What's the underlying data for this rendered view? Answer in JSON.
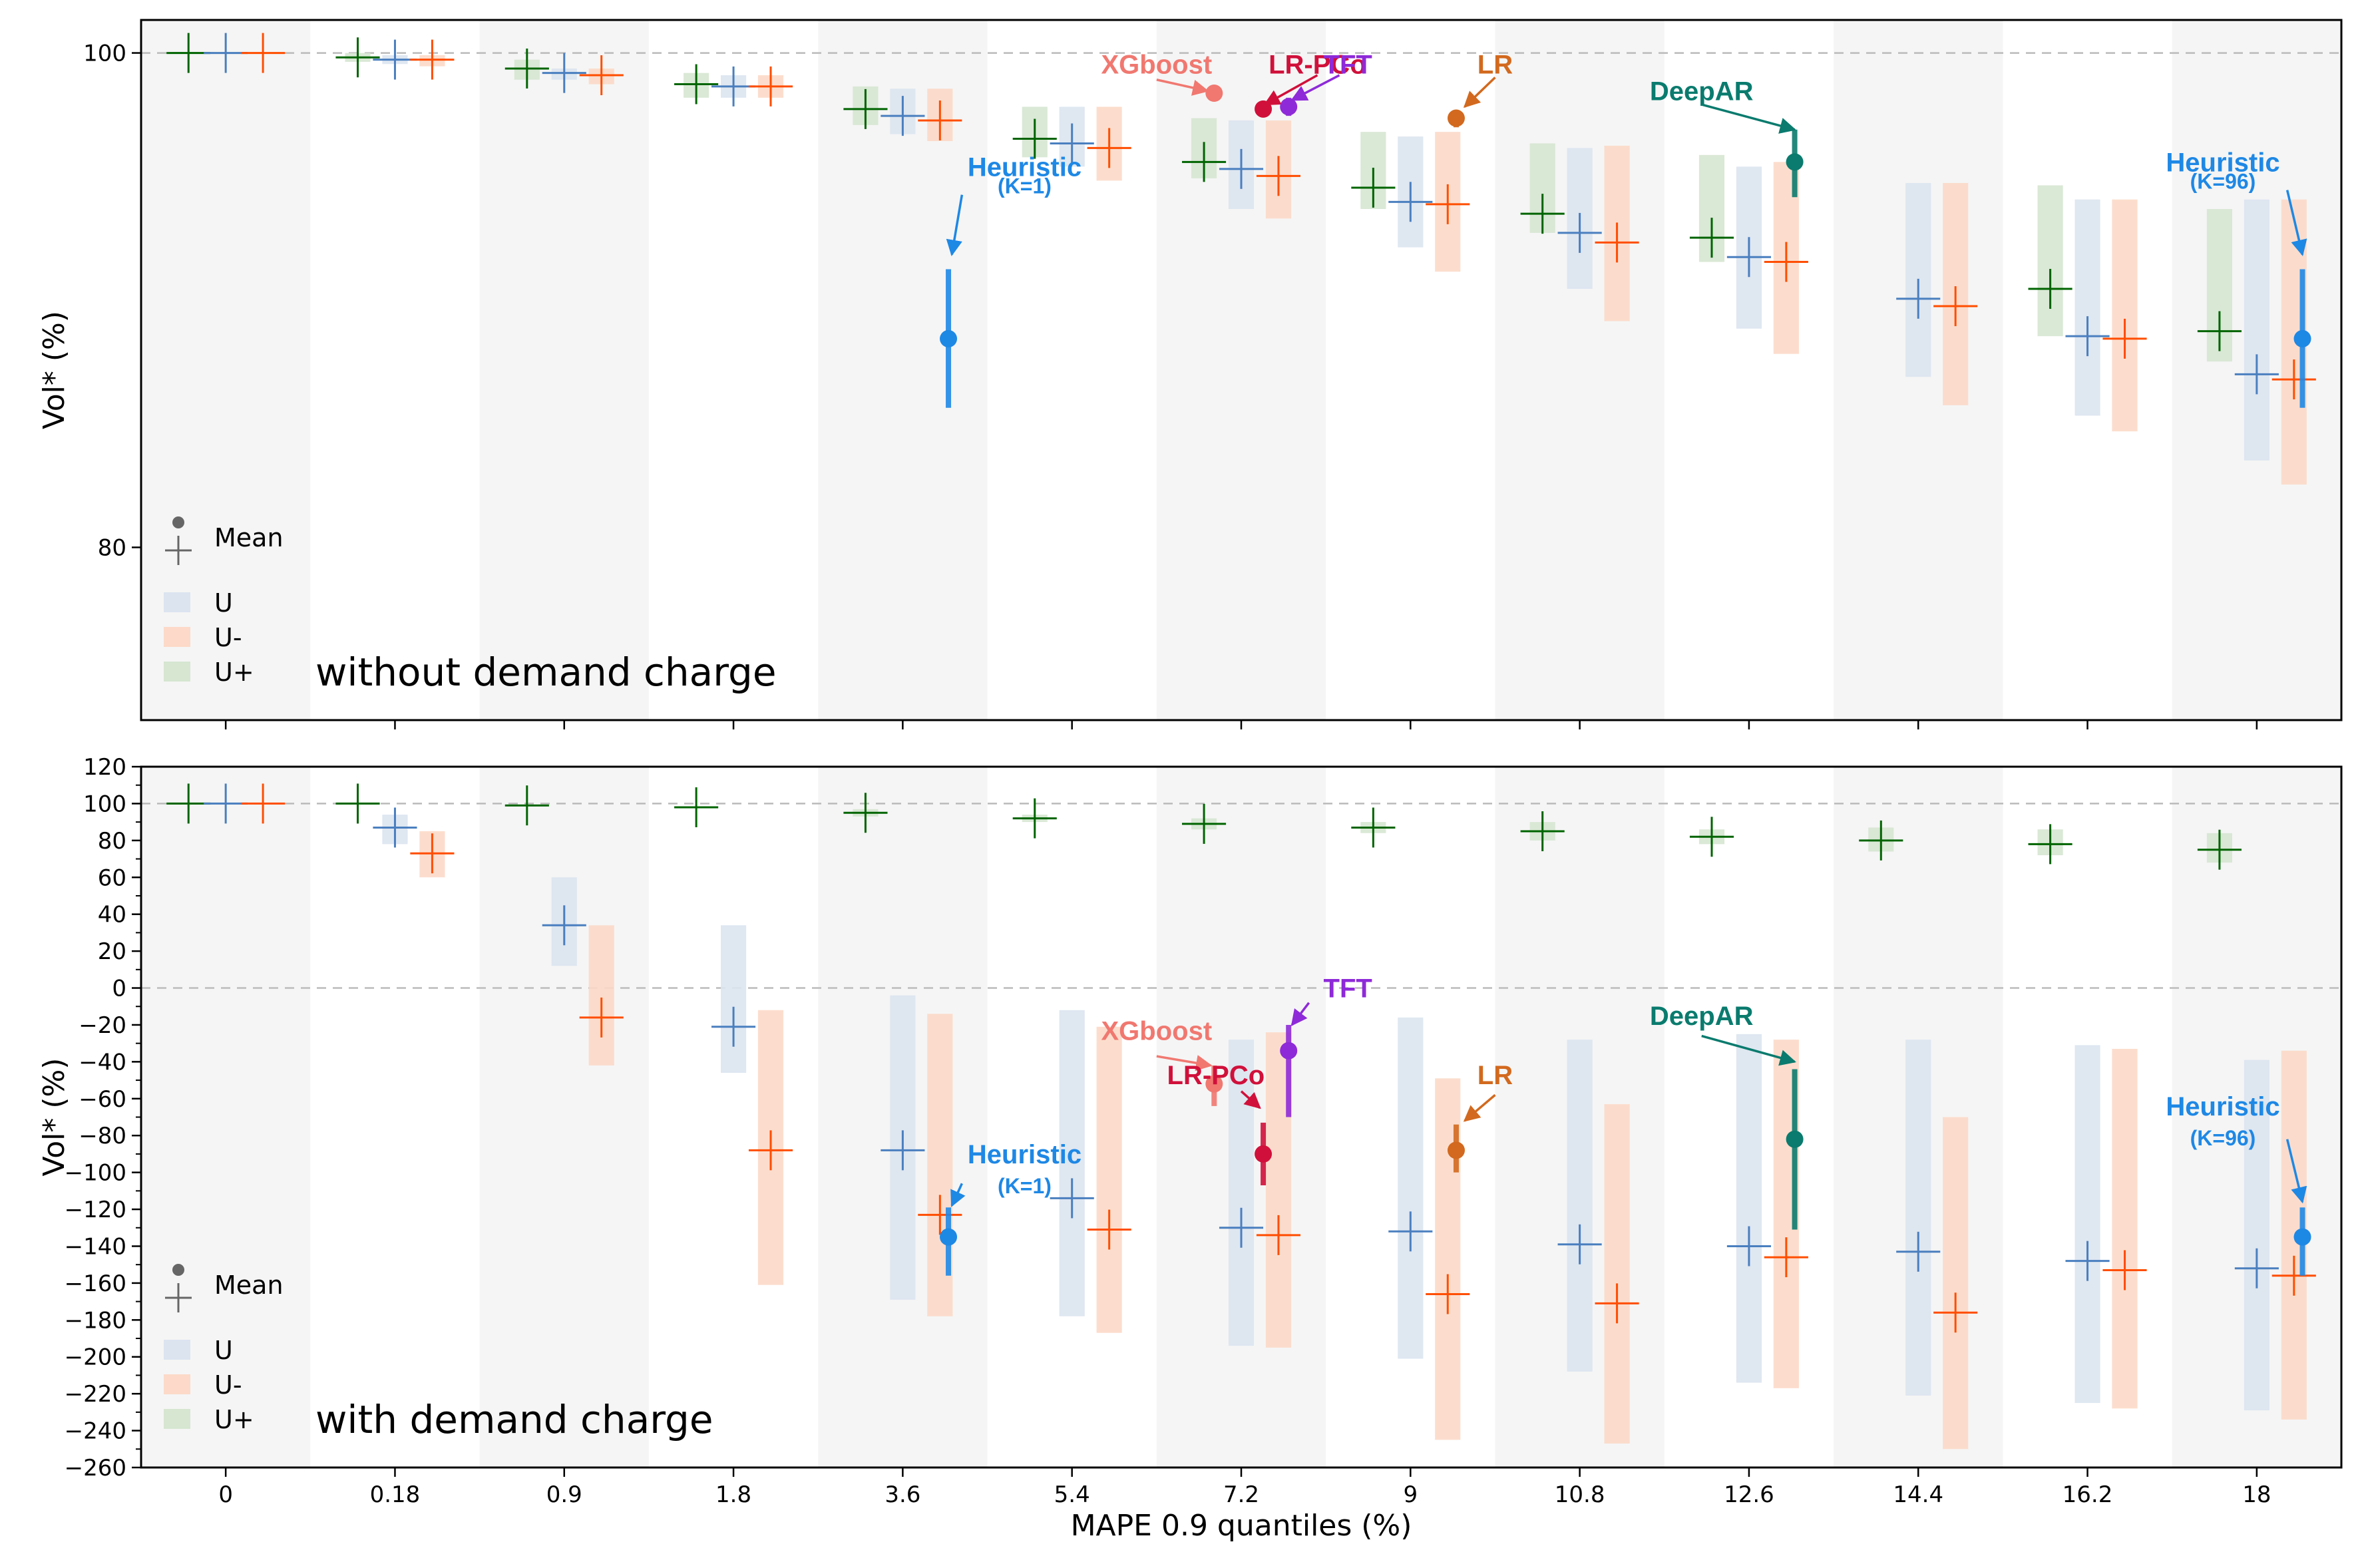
{
  "chart_data": {
    "type": "scatter",
    "x_categories": [
      "0",
      "0.18",
      "0.9",
      "1.8",
      "3.6",
      "5.4",
      "7.2",
      "9",
      "10.8",
      "12.6",
      "14.4",
      "16.2",
      "18"
    ],
    "xlabel": "MAPE 0.9 quantiles (%)",
    "legend": {
      "placement": "lower-left",
      "mean_label": "Mean",
      "entries": [
        {
          "key": "U",
          "label": "U",
          "color": "#4a7fbf",
          "fill": "#dbe4ef"
        },
        {
          "key": "Um",
          "label": "U-",
          "color": "#ff4d00",
          "fill": "#fcd9c8"
        },
        {
          "key": "Up",
          "label": "U+",
          "color": "#006400",
          "fill": "#d6e6d1"
        }
      ]
    },
    "panels": [
      {
        "key": "top",
        "caption": "without demand charge",
        "ylabel": "Vol* (%)",
        "ylim": [
          74,
          101.5
        ],
        "yticks": [
          80,
          100
        ],
        "ytick_labels": [
          "80",
          "100"
        ],
        "ref_lines": [
          100
        ],
        "series": {
          "Up": [
            {
              "x": 0,
              "mean": 100,
              "lo": 100,
              "hi": 100
            },
            {
              "x": 1,
              "mean": 99.8,
              "lo": 99.6,
              "hi": 100
            },
            {
              "x": 2,
              "mean": 99.3,
              "lo": 98.8,
              "hi": 99.7
            },
            {
              "x": 3,
              "mean": 98.6,
              "lo": 98.0,
              "hi": 99.1
            },
            {
              "x": 4,
              "mean": 97.5,
              "lo": 96.8,
              "hi": 98.5
            },
            {
              "x": 5,
              "mean": 96.2,
              "lo": 95.4,
              "hi": 97.6
            },
            {
              "x": 6,
              "mean": 95.2,
              "lo": 94.5,
              "hi": 97.1
            },
            {
              "x": 7,
              "mean": 94.1,
              "lo": 93.2,
              "hi": 96.5
            },
            {
              "x": 8,
              "mean": 93.0,
              "lo": 92.2,
              "hi": 96.0
            },
            {
              "x": 9,
              "mean": 92.0,
              "lo": 91.0,
              "hi": 95.5
            },
            {
              "x": 11,
              "mean": 89.9,
              "lo": 88.0,
              "hi": 94.2
            },
            {
              "x": 12,
              "mean": 88.2,
              "lo": 87.0,
              "hi": 93.2
            }
          ],
          "U": [
            {
              "x": 0,
              "mean": 100,
              "lo": 100,
              "hi": 100
            },
            {
              "x": 1,
              "mean": 99.7,
              "lo": 99.5,
              "hi": 99.9
            },
            {
              "x": 2,
              "mean": 99.1,
              "lo": 98.8,
              "hi": 99.3
            },
            {
              "x": 3,
              "mean": 98.5,
              "lo": 98.0,
              "hi": 99.0
            },
            {
              "x": 4,
              "mean": 97.2,
              "lo": 96.4,
              "hi": 98.4
            },
            {
              "x": 5,
              "mean": 96.0,
              "lo": 95.0,
              "hi": 97.6
            },
            {
              "x": 6,
              "mean": 94.9,
              "lo": 93.2,
              "hi": 97.0
            },
            {
              "x": 7,
              "mean": 93.5,
              "lo": 91.6,
              "hi": 96.3
            },
            {
              "x": 8,
              "mean": 92.2,
              "lo": 89.9,
              "hi": 95.8
            },
            {
              "x": 9,
              "mean": 91.2,
              "lo": 88.3,
              "hi": 95.0
            },
            {
              "x": 10,
              "mean": 89.5,
              "lo": 86.4,
              "hi": 94.3
            },
            {
              "x": 11,
              "mean": 88.0,
              "lo": 84.9,
              "hi": 93.6
            },
            {
              "x": 12,
              "mean": 86.5,
              "lo": 83.2,
              "hi": 93.6
            }
          ],
          "Um": [
            {
              "x": 0,
              "mean": 100,
              "lo": 100,
              "hi": 100
            },
            {
              "x": 1,
              "mean": 99.7,
              "lo": 99.4,
              "hi": 99.9
            },
            {
              "x": 2,
              "mean": 99.0,
              "lo": 98.6,
              "hi": 99.3
            },
            {
              "x": 3,
              "mean": 98.5,
              "lo": 98.0,
              "hi": 99.0
            },
            {
              "x": 4,
              "mean": 97.0,
              "lo": 96.1,
              "hi": 98.4
            },
            {
              "x": 5,
              "mean": 95.8,
              "lo": 94.4,
              "hi": 97.6
            },
            {
              "x": 6,
              "mean": 94.6,
              "lo": 92.8,
              "hi": 97.0
            },
            {
              "x": 7,
              "mean": 93.4,
              "lo": 90.6,
              "hi": 96.5
            },
            {
              "x": 8,
              "mean": 91.8,
              "lo": 88.6,
              "hi": 95.9
            },
            {
              "x": 9,
              "mean": 91.0,
              "lo": 87.3,
              "hi": 95.2
            },
            {
              "x": 10,
              "mean": 89.2,
              "lo": 85.3,
              "hi": 94.3
            },
            {
              "x": 11,
              "mean": 87.9,
              "lo": 84.3,
              "hi": 93.6
            },
            {
              "x": 12,
              "mean": 86.3,
              "lo": 82.3,
              "hi": 93.6
            }
          ]
        },
        "models": [
          {
            "label": "Heuristic",
            "sub": "(K=1)",
            "x": 4.27,
            "y": 87.9,
            "lo": 85.2,
            "hi": 90.7,
            "color": "#1e88e5",
            "label_x": 4.72,
            "label_y": 95.0,
            "sub_x": 4.72,
            "sub_y": 94.2,
            "arrow_from_x": 4.35,
            "arrow_from_y": 93.8,
            "arrow_to_x": 4.29,
            "arrow_to_y": 91.3
          },
          {
            "label": "XGboost",
            "x": 5.84,
            "y": 98.2,
            "color": "#f07870",
            "label_x": 5.5,
            "label_y": 99.5,
            "arrow_from_x": 5.5,
            "arrow_from_y": 98.8,
            "arrow_to_x": 5.8,
            "arrow_to_y": 98.3
          },
          {
            "label": "LR-PCo",
            "x": 6.13,
            "y": 97.5,
            "color": "#d0103a",
            "label_x": 6.45,
            "label_y": 99.5,
            "arrow_from_x": 6.45,
            "arrow_from_y": 99.0,
            "arrow_to_x": 6.14,
            "arrow_to_y": 97.7
          },
          {
            "label": "TFT",
            "x": 6.28,
            "y": 97.6,
            "lo": 97.2,
            "hi": 98.0,
            "color": "#8e2ad8",
            "label_x": 6.63,
            "label_y": 99.5,
            "arrow_from_x": 6.58,
            "arrow_from_y": 99.0,
            "arrow_to_x": 6.3,
            "arrow_to_y": 97.9
          },
          {
            "label": "LR",
            "x": 7.27,
            "y": 97.1,
            "lo": 96.7,
            "hi": 97.3,
            "color": "#d2691e",
            "label_x": 7.5,
            "label_y": 99.5,
            "arrow_from_x": 7.5,
            "arrow_from_y": 98.9,
            "arrow_to_x": 7.32,
            "arrow_to_y": 97.6
          },
          {
            "label": "DeepAR",
            "x": 9.27,
            "y": 95.2,
            "lo": 93.7,
            "hi": 96.6,
            "color": "#0a7b6e",
            "label_x": 8.72,
            "label_y": 98.3,
            "arrow_from_x": 8.72,
            "arrow_from_y": 97.7,
            "arrow_to_x": 9.27,
            "arrow_to_y": 96.6
          },
          {
            "label": "Heuristic",
            "sub": "(K=96)",
            "x": 12.27,
            "y": 87.9,
            "lo": 85.2,
            "hi": 90.7,
            "color": "#1e88e5",
            "label_x": 11.8,
            "label_y": 95.2,
            "sub_x": 11.8,
            "sub_y": 94.4,
            "arrow_from_x": 12.18,
            "arrow_from_y": 94.0,
            "arrow_to_x": 12.27,
            "arrow_to_y": 91.3
          }
        ]
      },
      {
        "key": "bottom",
        "caption": "with demand charge",
        "ylabel": "Vol* (%)",
        "ylim": [
          -260,
          120
        ],
        "yticks": [
          -260,
          -240,
          -220,
          -200,
          -180,
          -160,
          -140,
          -120,
          -100,
          -80,
          -60,
          -40,
          -20,
          0,
          20,
          40,
          60,
          80,
          100,
          120
        ],
        "ytick_labels": [
          "−260",
          "−240",
          "−220",
          "−200",
          "−180",
          "−160",
          "−140",
          "−120",
          "−100",
          "−80",
          "−60",
          "−40",
          "−20",
          "0",
          "20",
          "40",
          "60",
          "80",
          "100",
          "120"
        ],
        "ref_lines": [
          100,
          0
        ],
        "series": {
          "Up": [
            {
              "x": 0,
              "mean": 100,
              "lo": 100,
              "hi": 100
            },
            {
              "x": 1,
              "mean": 100,
              "lo": 100,
              "hi": 100
            },
            {
              "x": 2,
              "mean": 99,
              "lo": 99,
              "hi": 99
            },
            {
              "x": 3,
              "mean": 98,
              "lo": 98,
              "hi": 98
            },
            {
              "x": 4,
              "mean": 95,
              "lo": 93,
              "hi": 97
            },
            {
              "x": 5,
              "mean": 92,
              "lo": 90,
              "hi": 94
            },
            {
              "x": 6,
              "mean": 89,
              "lo": 86,
              "hi": 92
            },
            {
              "x": 7,
              "mean": 87,
              "lo": 84,
              "hi": 90
            },
            {
              "x": 8,
              "mean": 85,
              "lo": 80,
              "hi": 90
            },
            {
              "x": 9,
              "mean": 82,
              "lo": 78,
              "hi": 86
            },
            {
              "x": 10,
              "mean": 80,
              "lo": 74,
              "hi": 87
            },
            {
              "x": 11,
              "mean": 78,
              "lo": 72,
              "hi": 86
            },
            {
              "x": 12,
              "mean": 75,
              "lo": 68,
              "hi": 84
            }
          ],
          "U": [
            {
              "x": 0,
              "mean": 100,
              "lo": 100,
              "hi": 100
            },
            {
              "x": 1,
              "mean": 87,
              "lo": 78,
              "hi": 94
            },
            {
              "x": 2,
              "mean": 34,
              "lo": 12,
              "hi": 60
            },
            {
              "x": 3,
              "mean": -21,
              "lo": -46,
              "hi": 34
            },
            {
              "x": 4,
              "mean": -88,
              "lo": -169,
              "hi": -4
            },
            {
              "x": 5,
              "mean": -114,
              "lo": -178,
              "hi": -12
            },
            {
              "x": 6,
              "mean": -130,
              "lo": -194,
              "hi": -28
            },
            {
              "x": 7,
              "mean": -132,
              "lo": -201,
              "hi": -16
            },
            {
              "x": 8,
              "mean": -139,
              "lo": -208,
              "hi": -28
            },
            {
              "x": 9,
              "mean": -140,
              "lo": -214,
              "hi": -25
            },
            {
              "x": 10,
              "mean": -143,
              "lo": -221,
              "hi": -28
            },
            {
              "x": 11,
              "mean": -148,
              "lo": -225,
              "hi": -31
            },
            {
              "x": 12,
              "mean": -152,
              "lo": -229,
              "hi": -39
            }
          ],
          "Um": [
            {
              "x": 0,
              "mean": 100,
              "lo": 100,
              "hi": 100
            },
            {
              "x": 1,
              "mean": 73,
              "lo": 60,
              "hi": 85
            },
            {
              "x": 2,
              "mean": -16,
              "lo": -42,
              "hi": 34
            },
            {
              "x": 3,
              "mean": -88,
              "lo": -161,
              "hi": -12
            },
            {
              "x": 4,
              "mean": -123,
              "lo": -178,
              "hi": -14
            },
            {
              "x": 5,
              "mean": -131,
              "lo": -187,
              "hi": -21
            },
            {
              "x": 6,
              "mean": -134,
              "lo": -195,
              "hi": -24
            },
            {
              "x": 7,
              "mean": -166,
              "lo": -245,
              "hi": -49
            },
            {
              "x": 8,
              "mean": -171,
              "lo": -247,
              "hi": -63
            },
            {
              "x": 9,
              "mean": -146,
              "lo": -217,
              "hi": -28
            },
            {
              "x": 10,
              "mean": -176,
              "lo": -250,
              "hi": -70
            },
            {
              "x": 11,
              "mean": -153,
              "lo": -228,
              "hi": -33
            },
            {
              "x": 12,
              "mean": -156,
              "lo": -234,
              "hi": -34
            }
          ]
        },
        "models": [
          {
            "label": "Heuristic",
            "sub": "(K=1)",
            "x": 4.27,
            "y": -135,
            "lo": -156,
            "hi": -119,
            "color": "#1e88e5",
            "label_x": 4.72,
            "label_y": -90,
            "sub_x": 4.72,
            "sub_y": -107,
            "arrow_from_x": 4.35,
            "arrow_from_y": -106,
            "arrow_to_x": 4.29,
            "arrow_to_y": -118
          },
          {
            "label": "XGboost",
            "x": 5.84,
            "y": -52,
            "lo": -64,
            "hi": -42,
            "color": "#f07870",
            "label_x": 5.5,
            "label_y": -23,
            "arrow_from_x": 5.5,
            "arrow_from_y": -37,
            "arrow_to_x": 5.82,
            "arrow_to_y": -42
          },
          {
            "label": "LR-PCo",
            "x": 6.13,
            "y": -90,
            "lo": -107,
            "hi": -73,
            "color": "#d0103a",
            "label_x": 5.85,
            "label_y": -47,
            "arrow_from_x": 6.0,
            "arrow_from_y": -56,
            "arrow_to_x": 6.11,
            "arrow_to_y": -65
          },
          {
            "label": "TFT",
            "x": 6.28,
            "y": -34,
            "lo": -70,
            "hi": -20,
            "color": "#8e2ad8",
            "label_x": 6.63,
            "label_y": 0,
            "arrow_from_x": 6.4,
            "arrow_from_y": -8,
            "arrow_to_x": 6.3,
            "arrow_to_y": -20
          },
          {
            "label": "LR",
            "x": 7.27,
            "y": -88,
            "lo": -100,
            "hi": -74,
            "color": "#d2691e",
            "label_x": 7.5,
            "label_y": -47,
            "arrow_from_x": 7.5,
            "arrow_from_y": -58,
            "arrow_to_x": 7.32,
            "arrow_to_y": -72
          },
          {
            "label": "DeepAR",
            "x": 9.27,
            "y": -82,
            "lo": -131,
            "hi": -44,
            "color": "#0a7b6e",
            "label_x": 8.72,
            "label_y": -15,
            "arrow_from_x": 8.72,
            "arrow_from_y": -26,
            "arrow_to_x": 9.27,
            "arrow_to_y": -40
          },
          {
            "label": "Heuristic",
            "sub": "(K=96)",
            "x": 12.27,
            "y": -135,
            "lo": -156,
            "hi": -119,
            "color": "#1e88e5",
            "label_x": 11.8,
            "label_y": -64,
            "sub_x": 11.8,
            "sub_y": -81,
            "arrow_from_x": 12.18,
            "arrow_from_y": -82,
            "arrow_to_x": 12.27,
            "arrow_to_y": -116
          }
        ]
      }
    ]
  }
}
